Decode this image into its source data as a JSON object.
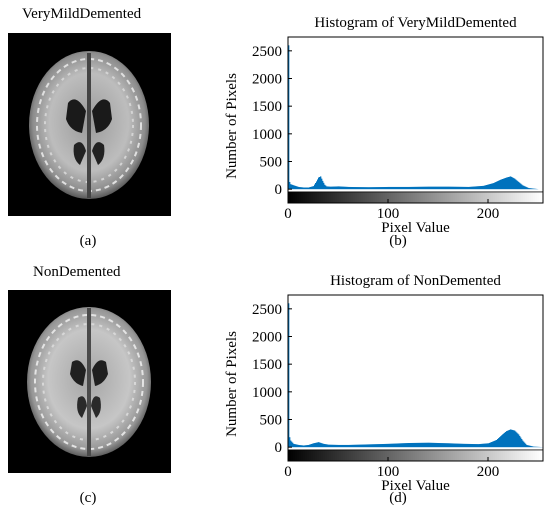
{
  "figure": {
    "panels": [
      {
        "id": "a",
        "title": "VeryMildDemented",
        "caption": "(a)"
      },
      {
        "id": "b",
        "caption": "(b)"
      },
      {
        "id": "c",
        "title": "NonDemented",
        "caption": "(c)"
      },
      {
        "id": "d",
        "caption": "(d)"
      }
    ]
  },
  "colors": {
    "bar": "#0072BD",
    "axis": "#000000"
  },
  "chart_data": [
    {
      "type": "bar",
      "title": "Histogram of VeryMildDemented",
      "xlabel": "Pixel Value",
      "ylabel": "Number of Pixels",
      "xlim": [
        0,
        255
      ],
      "ylim": [
        -250,
        2750
      ],
      "xticks": [
        0,
        100,
        200
      ],
      "yticks": [
        0,
        500,
        1000,
        1500,
        2000,
        2500
      ],
      "grid": false,
      "colorbar": "grayscale 0-255 below x-axis",
      "x": [
        0,
        1,
        2,
        5,
        10,
        15,
        20,
        25,
        28,
        30,
        32,
        34,
        36,
        38,
        42,
        50,
        60,
        80,
        100,
        120,
        140,
        160,
        180,
        195,
        205,
        212,
        218,
        222,
        226,
        230,
        234,
        240,
        250,
        255
      ],
      "values": [
        2600,
        130,
        90,
        70,
        40,
        30,
        30,
        55,
        140,
        210,
        230,
        150,
        80,
        50,
        45,
        50,
        40,
        35,
        40,
        40,
        45,
        45,
        40,
        60,
        110,
        170,
        210,
        230,
        190,
        130,
        70,
        20,
        0,
        0
      ]
    },
    {
      "type": "bar",
      "title": "Histogram of NonDemented",
      "xlabel": "Pixel Value",
      "ylabel": "Number of Pixels",
      "xlim": [
        0,
        255
      ],
      "ylim": [
        -250,
        2750
      ],
      "xticks": [
        0,
        100,
        200
      ],
      "yticks": [
        0,
        500,
        1000,
        1500,
        2000,
        2500
      ],
      "grid": false,
      "colorbar": "grayscale 0-255 below x-axis",
      "x": [
        0,
        1,
        2,
        5,
        10,
        15,
        20,
        25,
        30,
        35,
        40,
        50,
        60,
        80,
        100,
        120,
        140,
        160,
        175,
        190,
        200,
        208,
        214,
        218,
        222,
        226,
        230,
        234,
        238,
        245,
        255
      ],
      "values": [
        2600,
        180,
        120,
        60,
        40,
        30,
        40,
        70,
        90,
        60,
        45,
        40,
        40,
        50,
        60,
        75,
        80,
        70,
        60,
        55,
        70,
        130,
        230,
        290,
        320,
        300,
        230,
        120,
        40,
        10,
        0
      ]
    }
  ]
}
